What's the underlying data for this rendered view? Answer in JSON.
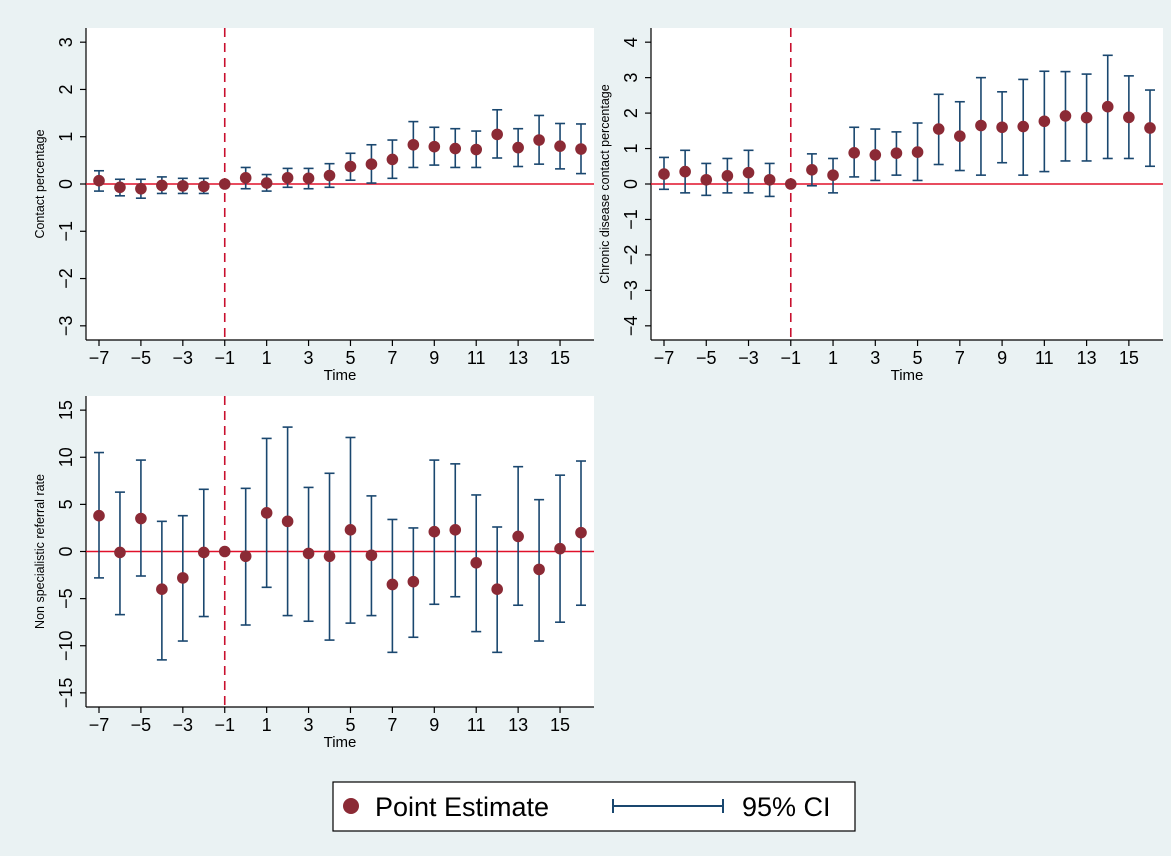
{
  "colors": {
    "background": "#eaf2f3",
    "panel": "#ffffff",
    "point": "#8b2a35",
    "ci": "#1a476f",
    "zero_line": "#e0102a",
    "event_line": "#c8102e",
    "axis": "#000000"
  },
  "legend": {
    "point_label": "Point Estimate",
    "ci_label": "95% CI",
    "placement": "bottom-center"
  },
  "chart_data": [
    {
      "type": "scatter",
      "subtype": "coefficient-plot",
      "xlabel": "Time",
      "ylabel": "Contact percentage",
      "xlim": [
        -7,
        16
      ],
      "ylim": [
        -3.3,
        3.3
      ],
      "x_ticks": [
        -7,
        -5,
        -3,
        -1,
        1,
        3,
        5,
        7,
        9,
        11,
        13,
        15
      ],
      "y_ticks": [
        -3,
        -2,
        -1,
        0,
        1,
        2,
        3
      ],
      "reference_y": 0,
      "event_x": -1,
      "grid": false,
      "x": [
        -7,
        -6,
        -5,
        -4,
        -3,
        -2,
        -1,
        0,
        1,
        2,
        3,
        4,
        5,
        6,
        7,
        8,
        9,
        10,
        11,
        12,
        13,
        14,
        15,
        16
      ],
      "y": [
        0.07,
        -0.07,
        -0.1,
        -0.03,
        -0.04,
        -0.05,
        0,
        0.13,
        0.02,
        0.13,
        0.12,
        0.18,
        0.37,
        0.42,
        0.52,
        0.83,
        0.79,
        0.75,
        0.73,
        1.05,
        0.77,
        0.93,
        0.8,
        0.74
      ],
      "ci_low": [
        -0.15,
        -0.25,
        -0.3,
        -0.2,
        -0.2,
        -0.2,
        0,
        -0.1,
        -0.15,
        -0.07,
        -0.1,
        -0.07,
        0.08,
        0.02,
        0.12,
        0.35,
        0.4,
        0.35,
        0.35,
        0.55,
        0.37,
        0.42,
        0.32,
        0.22
      ],
      "ci_high": [
        0.28,
        0.1,
        0.1,
        0.15,
        0.12,
        0.12,
        0,
        0.35,
        0.2,
        0.33,
        0.33,
        0.43,
        0.65,
        0.83,
        0.93,
        1.32,
        1.2,
        1.17,
        1.12,
        1.57,
        1.17,
        1.45,
        1.28,
        1.27
      ]
    },
    {
      "type": "scatter",
      "subtype": "coefficient-plot",
      "xlabel": "Time",
      "ylabel": "Chronic disease contact percentage",
      "xlim": [
        -7,
        16
      ],
      "ylim": [
        -4.4,
        4.4
      ],
      "x_ticks": [
        -7,
        -5,
        -3,
        -1,
        1,
        3,
        5,
        7,
        9,
        11,
        13,
        15
      ],
      "y_ticks": [
        -4,
        -3,
        -2,
        -1,
        0,
        1,
        2,
        3,
        4
      ],
      "reference_y": 0,
      "event_x": -1,
      "grid": false,
      "x": [
        -7,
        -6,
        -5,
        -4,
        -3,
        -2,
        -1,
        0,
        1,
        2,
        3,
        4,
        5,
        6,
        7,
        8,
        9,
        10,
        11,
        12,
        13,
        14,
        15,
        16
      ],
      "y": [
        0.28,
        0.35,
        0.12,
        0.23,
        0.32,
        0.12,
        0,
        0.4,
        0.25,
        0.88,
        0.82,
        0.87,
        0.9,
        1.55,
        1.35,
        1.65,
        1.6,
        1.62,
        1.77,
        1.92,
        1.87,
        2.18,
        1.88,
        1.58
      ],
      "ci_low": [
        -0.15,
        -0.25,
        -0.32,
        -0.25,
        -0.25,
        -0.35,
        0,
        -0.05,
        -0.25,
        0.2,
        0.1,
        0.25,
        0.1,
        0.55,
        0.38,
        0.25,
        0.6,
        0.25,
        0.35,
        0.65,
        0.65,
        0.72,
        0.72,
        0.5
      ],
      "ci_high": [
        0.75,
        0.95,
        0.58,
        0.72,
        0.95,
        0.58,
        0,
        0.85,
        0.72,
        1.6,
        1.55,
        1.47,
        1.72,
        2.53,
        2.32,
        3.0,
        2.6,
        2.95,
        3.18,
        3.17,
        3.1,
        3.63,
        3.05,
        2.65
      ]
    },
    {
      "type": "scatter",
      "subtype": "coefficient-plot",
      "xlabel": "Time",
      "ylabel": "Non specialistic referral rate",
      "xlim": [
        -7,
        16
      ],
      "ylim": [
        -16.5,
        16.5
      ],
      "x_ticks": [
        -7,
        -5,
        -3,
        -1,
        1,
        3,
        5,
        7,
        9,
        11,
        13,
        15
      ],
      "y_ticks": [
        -15,
        -10,
        -5,
        0,
        5,
        10,
        15
      ],
      "reference_y": 0,
      "event_x": -1,
      "grid": false,
      "x": [
        -7,
        -6,
        -5,
        -4,
        -3,
        -2,
        -1,
        0,
        1,
        2,
        3,
        4,
        5,
        6,
        7,
        8,
        9,
        10,
        11,
        12,
        13,
        14,
        15,
        16
      ],
      "y": [
        3.8,
        -0.1,
        3.5,
        -4.0,
        -2.8,
        -0.1,
        0,
        -0.5,
        4.1,
        3.2,
        -0.2,
        -0.5,
        2.3,
        -0.4,
        -3.5,
        -3.2,
        2.1,
        2.3,
        -1.2,
        -4.0,
        1.6,
        -1.9,
        0.3,
        2.0
      ],
      "ci_low": [
        -2.8,
        -6.7,
        -2.6,
        -11.5,
        -9.5,
        -6.9,
        0,
        -7.8,
        -3.8,
        -6.8,
        -7.4,
        -9.4,
        -7.6,
        -6.8,
        -10.7,
        -9.1,
        -5.6,
        -4.8,
        -8.5,
        -10.7,
        -5.7,
        -9.5,
        -7.5,
        -5.7
      ],
      "ci_high": [
        10.5,
        6.3,
        9.7,
        3.2,
        3.8,
        6.6,
        0,
        6.7,
        12.0,
        13.2,
        6.8,
        8.3,
        12.1,
        5.9,
        3.4,
        2.5,
        9.7,
        9.3,
        6.0,
        2.6,
        9.0,
        5.5,
        8.1,
        9.6
      ]
    }
  ]
}
